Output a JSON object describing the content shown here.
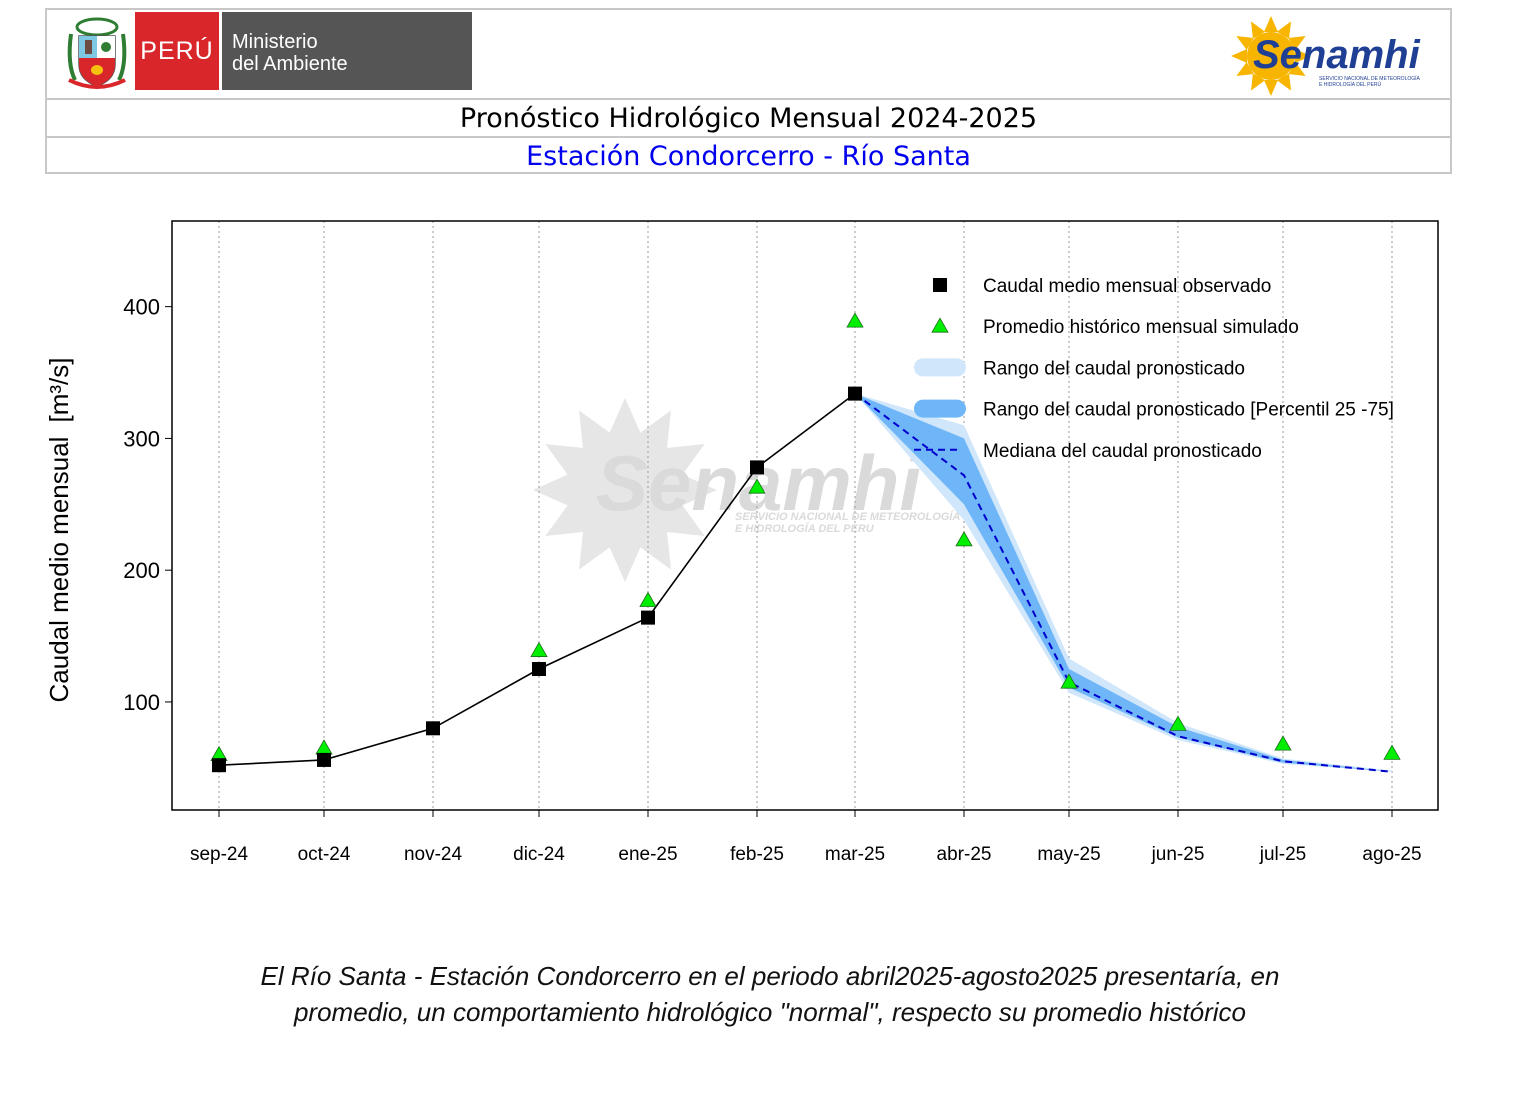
{
  "header": {
    "peru_label": "PERÚ",
    "ministry_line1": "Ministerio",
    "ministry_line2": "del Ambiente",
    "brand_name": "Senamhi",
    "brand_tagline_1": "SERVICIO NACIONAL DE METEOROLOGÍA",
    "brand_tagline_2": "E HIDROLOGÍA DEL PERÚ",
    "title": "Pronóstico Hidrológico Mensual 2024-2025",
    "subtitle": "Estación Condorcerro - Río Santa"
  },
  "watermark": {
    "name": "Senamhi",
    "line1": "SERVICIO NACIONAL DE METEOROLOGÍA",
    "line2": "E HIDROLOGÍA DEL PERU"
  },
  "chart_data": {
    "type": "line",
    "ylabel": "Caudal medio mensual",
    "ylabel_unit": "[m³/s]",
    "categories": [
      "sep-24",
      "oct-24",
      "nov-24",
      "dic-24",
      "ene-25",
      "feb-25",
      "mar-25",
      "abr-25",
      "may-25",
      "jun-25",
      "jul-25",
      "ago-25"
    ],
    "ylim": [
      18,
      465
    ],
    "yticks": [
      100,
      200,
      300,
      400
    ],
    "grid": "vertical dotted",
    "legend_position": "top-right",
    "series": [
      {
        "name": "Caudal medio mensual observado",
        "kind": "observed",
        "values": [
          52,
          56,
          80,
          125,
          164,
          278,
          334,
          null,
          null,
          null,
          null,
          null
        ]
      },
      {
        "name": "Promedio histórico mensual simulado",
        "kind": "historical",
        "values": [
          60,
          65,
          null,
          139,
          177,
          263,
          389,
          223,
          115,
          83,
          68,
          61
        ]
      },
      {
        "name": "Rango del caudal pronosticado",
        "kind": "range",
        "low": [
          null,
          null,
          null,
          null,
          null,
          null,
          334,
          238,
          107,
          71,
          53,
          47
        ],
        "high": [
          null,
          null,
          null,
          null,
          null,
          null,
          334,
          310,
          133,
          84,
          57,
          48
        ]
      },
      {
        "name": "Rango del caudal pronosticado [Percentil 25 -75]",
        "kind": "iqr",
        "low": [
          null,
          null,
          null,
          null,
          null,
          null,
          334,
          250,
          111,
          73,
          54,
          47
        ],
        "high": [
          null,
          null,
          null,
          null,
          null,
          null,
          334,
          300,
          125,
          81,
          56,
          47
        ]
      },
      {
        "name": "Mediana del caudal pronosticado",
        "kind": "median",
        "values": [
          null,
          null,
          null,
          null,
          null,
          null,
          334,
          272,
          115,
          74,
          55,
          47
        ]
      }
    ],
    "colors": {
      "observed": "#000000",
      "historical": "#00ee00",
      "range": "#cfe6fb",
      "iqr": "#6fb6f8",
      "median": "#0000cc"
    }
  },
  "caption": {
    "line1": "El Río Santa - Estación Condorcerro en el periodo abril2025-agosto2025 presentaría, en",
    "line2": "promedio, un comportamiento hidrológico \"normal\", respecto su promedio histórico"
  }
}
